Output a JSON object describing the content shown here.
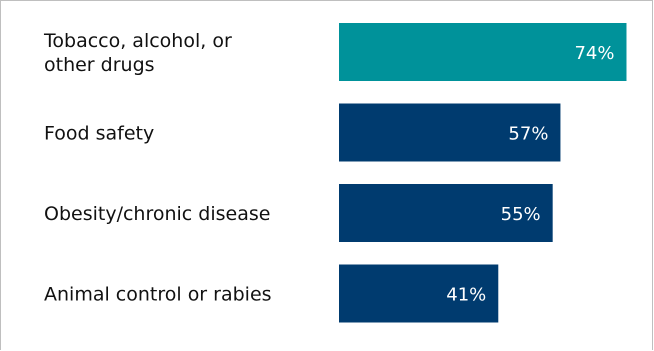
{
  "chart_data": {
    "type": "bar",
    "orientation": "horizontal",
    "categories": [
      "Tobacco, alcohol, or other drugs",
      "Food safety",
      "Obesity/chronic disease",
      "Animal control or rabies"
    ],
    "values": [
      74,
      57,
      55,
      41
    ],
    "value_labels": [
      "74%",
      "57%",
      "55%",
      "41%"
    ],
    "unit": "%",
    "xlim": [
      0,
      100
    ],
    "bar_colors": [
      "#00929a",
      "#003b6f",
      "#003b6f",
      "#003b6f"
    ],
    "grid": false,
    "legend": "none",
    "title": "",
    "xlabel": "",
    "ylabel": ""
  }
}
